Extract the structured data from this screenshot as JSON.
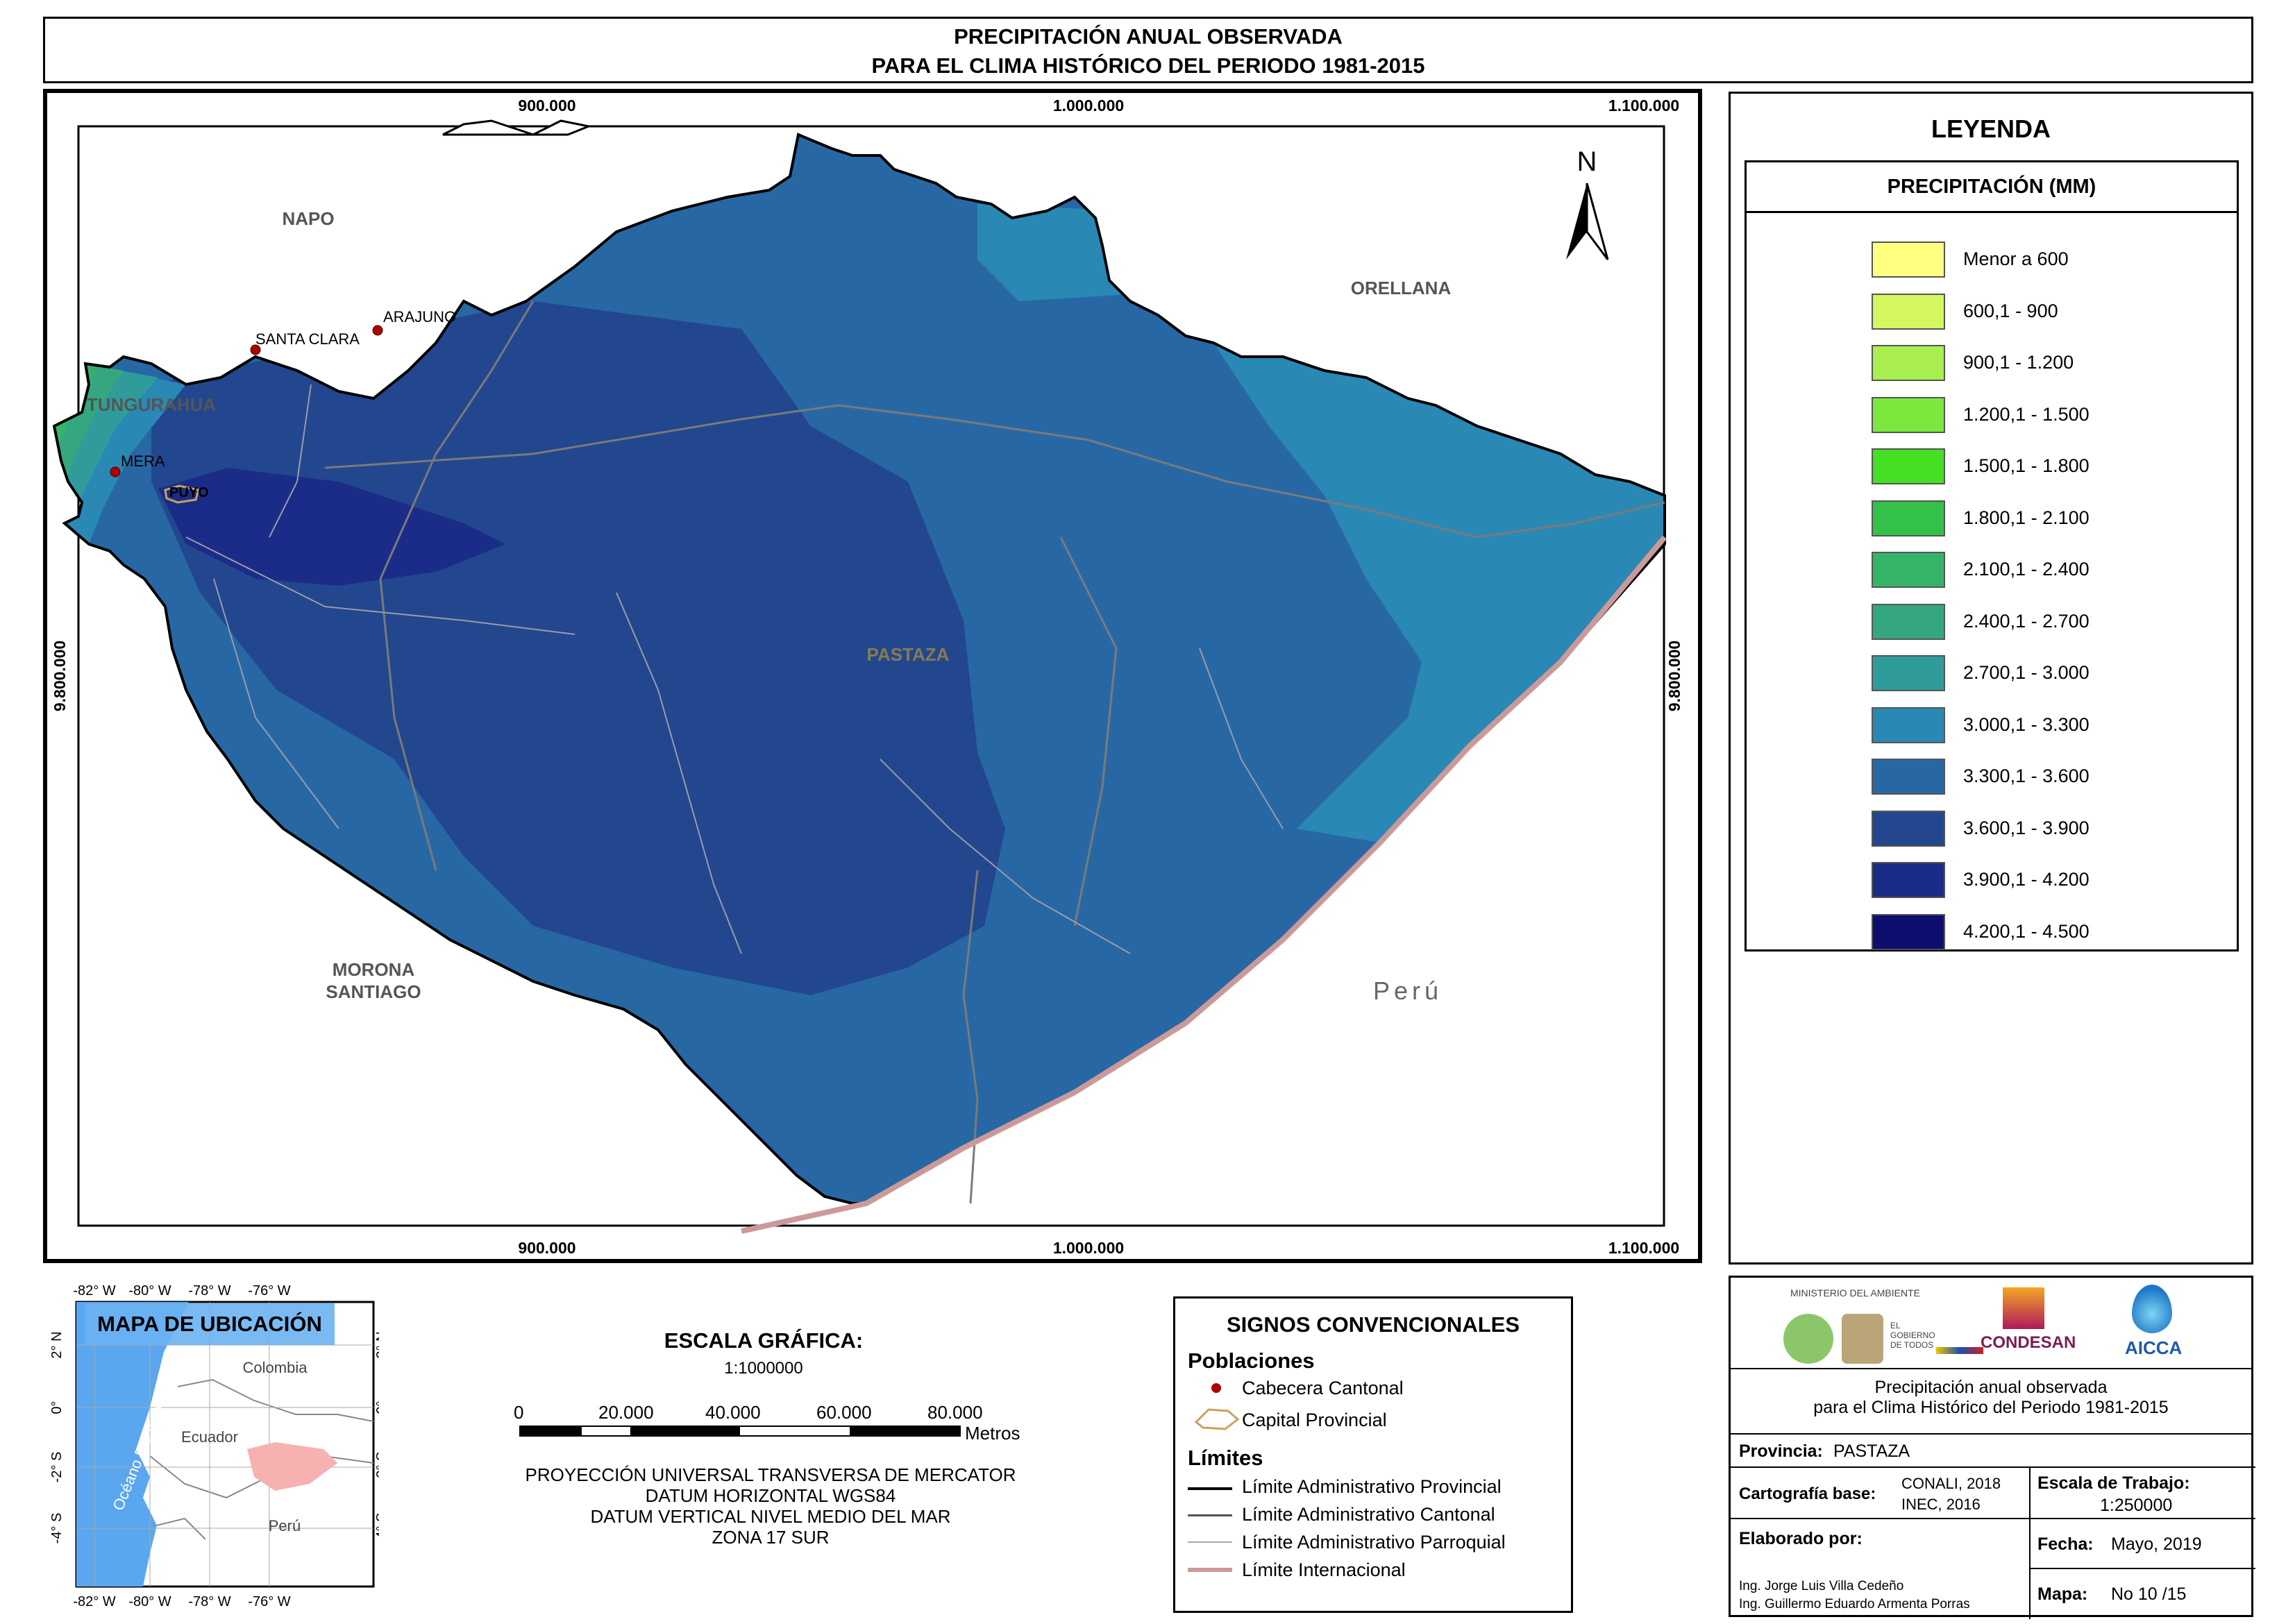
{
  "title": {
    "line1": "PRECIPITACIÓN ANUAL OBSERVADA",
    "line2": "PARA EL CLIMA HISTÓRICO DEL PERIODO 1981-2015"
  },
  "map": {
    "grid_top": [
      "900.000",
      "1.000.000",
      "1.100.000"
    ],
    "grid_bottom": [
      "900.000",
      "1.000.000",
      "1.100.000"
    ],
    "grid_left": "9.800.000",
    "grid_right": "9.800.000",
    "north": "N",
    "labels": {
      "napo": "NAPO",
      "orellana": "ORELLANA",
      "tungurahua": "TUNGURAHUA",
      "pastaza": "PASTAZA",
      "morona": "MORONA",
      "santiago": "SANTIAGO",
      "peru": "Perú"
    },
    "towns": {
      "arajuno": "ARAJUNO",
      "santa_clara": "SANTA CLARA",
      "mera": "MERA",
      "puyo": "PUYO"
    }
  },
  "legend": {
    "title": "LEYENDA",
    "subtitle": "PRECIPITACIÓN (MM)",
    "classes": [
      {
        "label": "Menor a 600",
        "color": "#ffff80"
      },
      {
        "label": "600,1 - 900",
        "color": "#d4f760"
      },
      {
        "label": "900,1 - 1.200",
        "color": "#a9ef4f"
      },
      {
        "label": "1.200,1 - 1.500",
        "color": "#7ce83e"
      },
      {
        "label": "1.500,1 - 1.800",
        "color": "#45df24"
      },
      {
        "label": "1.800,1 - 2.100",
        "color": "#33c14a"
      },
      {
        "label": "2.100,1 - 2.400",
        "color": "#35b468"
      },
      {
        "label": "2.400,1 - 2.700",
        "color": "#35a77f"
      },
      {
        "label": "2.700,1 - 3.000",
        "color": "#2f9c9b"
      },
      {
        "label": "3.000,1 - 3.300",
        "color": "#2a88b4"
      },
      {
        "label": "3.300,1 - 3.600",
        "color": "#2768a4"
      },
      {
        "label": "3.600,1 - 3.900",
        "color": "#22478f"
      },
      {
        "label": "3.900,1 - 4.200",
        "color": "#1b2c88"
      },
      {
        "label": "4.200,1 - 4.500",
        "color": "#0e0e6e"
      }
    ]
  },
  "location_map": {
    "title": "MAPA DE UBICACIÓN",
    "lon_ticks": [
      "-82° W",
      "-80° W",
      "-78° W",
      "-76° W"
    ],
    "lat_ticks": [
      "2° N",
      "0°",
      "-2° S",
      "-4° S"
    ],
    "ocean": "Océano Pacífico",
    "colombia": "Colombia",
    "ecuador": "Ecuador",
    "peru": "Perú"
  },
  "scale": {
    "title": "ESCALA GRÁFICA:",
    "ratio": "1:1000000",
    "ticks": [
      "0",
      "20.000",
      "40.000",
      "60.000",
      "80.000"
    ],
    "unit": "Metros",
    "projection": [
      "PROYECCIÓN UNIVERSAL TRANSVERSA DE MERCATOR",
      "DATUM HORIZONTAL WGS84",
      "DATUM VERTICAL NIVEL MEDIO DEL MAR",
      "ZONA 17 SUR"
    ]
  },
  "signs": {
    "title": "SIGNOS CONVENCIONALES",
    "poblaciones": "Poblaciones",
    "cabecera": "Cabecera Cantonal",
    "capital": "Capital Provincial",
    "limites": "Límites",
    "lim_prov": "Límite Administrativo Provincial",
    "lim_cant": "Límite Administrativo Cantonal",
    "lim_parr": "Límite Administrativo Parroquial",
    "lim_int": "Límite Internacional"
  },
  "info": {
    "ministerio": "MINISTERIO DEL AMBIENTE",
    "gobierno": "EL GOBIERNO DE TODOS",
    "condesan": "CONDESAN",
    "aicca": "AICCA",
    "desc1": "Precipitación anual observada",
    "desc2": "para el Clima Histórico del Periodo 1981-2015",
    "provincia_label": "Provincia:",
    "provincia_value": "PASTAZA",
    "cartografia_label": "Cartografía base:",
    "cartografia_1": "CONALI, 2018",
    "cartografia_2": "INEC, 2016",
    "escala_label": "Escala de Trabajo:",
    "escala_value": "1:250000",
    "elaborado_label": "Elaborado por:",
    "autor1": "Ing. Jorge Luis Villa Cedeño",
    "autor2": "Ing. Guillermo Eduardo Armenta Porras",
    "fecha_label": "Fecha:",
    "fecha_value": "Mayo, 2019",
    "mapa_label": "Mapa:",
    "mapa_value": "No 10 /15"
  }
}
